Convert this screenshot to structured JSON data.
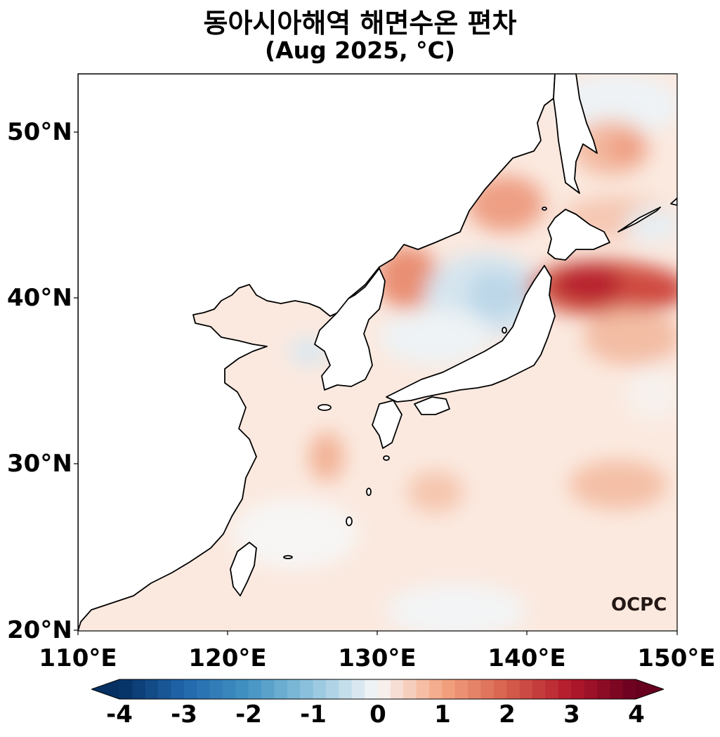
{
  "title": {
    "line1": "동아시아해역 해면수온 편차",
    "line2": "(Aug 2025, °C)"
  },
  "map": {
    "lon_range": [
      110,
      150
    ],
    "lat_range": [
      20,
      53.5
    ],
    "x_ticks": [
      "110°E",
      "120°E",
      "130°E",
      "140°E",
      "150°E"
    ],
    "y_ticks": [
      "50°N",
      "40°N",
      "30°N",
      "20°N"
    ],
    "logo": "OCPC"
  },
  "colorbar": {
    "min": -4,
    "max": 4,
    "ticks": [
      "-4",
      "-3",
      "-2",
      "-1",
      "0",
      "1",
      "2",
      "3",
      "4"
    ],
    "colormap": "RdBu_r",
    "extend": "both"
  },
  "colors": {
    "land": "#ffffff",
    "coast": "#000000",
    "cold_extreme": "#053061",
    "neutral": "#f7f7f7",
    "warm_extreme": "#67001f"
  }
}
